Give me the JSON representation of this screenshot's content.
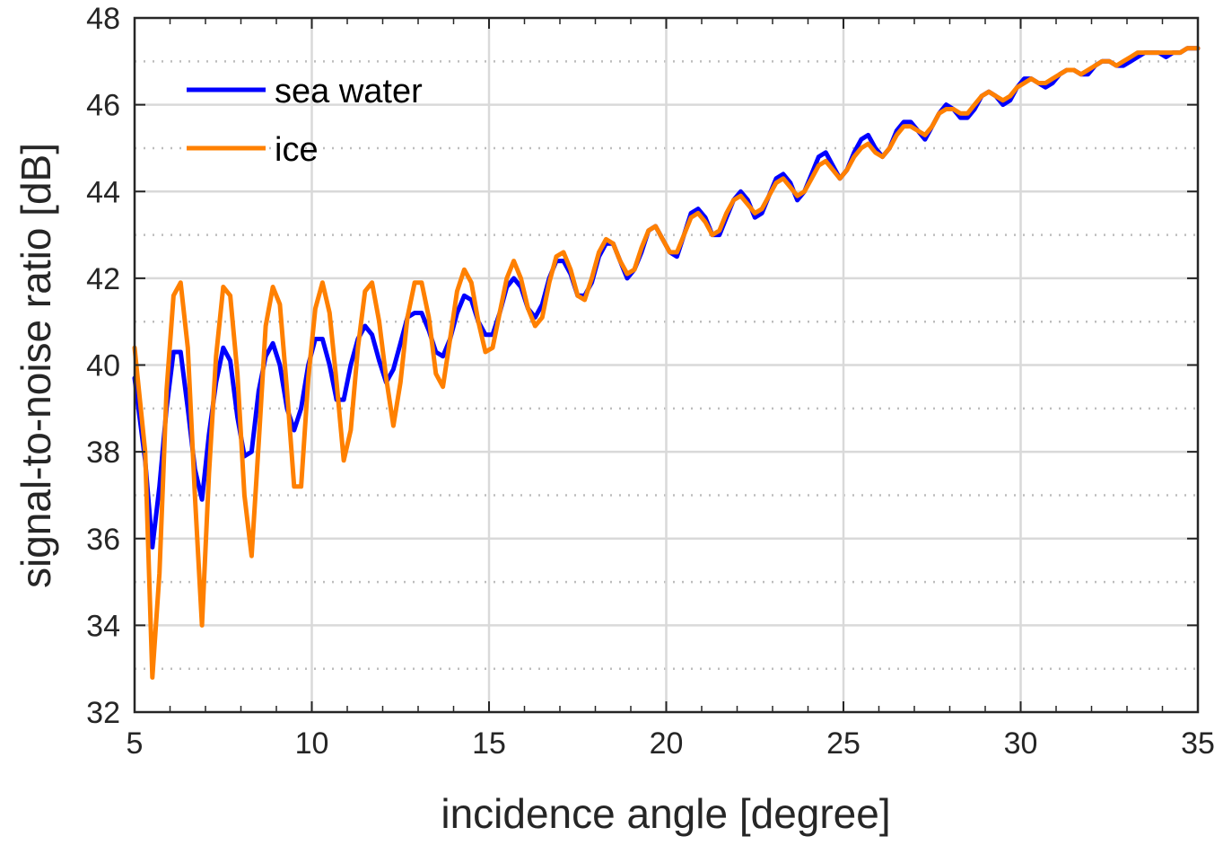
{
  "chart_data": {
    "type": "line",
    "xlabel": "incidence angle [degree]",
    "ylabel": "signal-to-noise ratio [dB]",
    "xlim": [
      5,
      35
    ],
    "ylim": [
      32,
      48
    ],
    "xticks": [
      "5",
      "10",
      "15",
      "20",
      "25",
      "30",
      "35"
    ],
    "yticks": [
      "32",
      "34",
      "36",
      "38",
      "40",
      "42",
      "44",
      "46",
      "48"
    ],
    "grid": "major solid, minor dotted",
    "legend_position": "top-left",
    "series": [
      {
        "name": "sea water",
        "color": "#0000ff",
        "points": [
          [
            5.0,
            39.7
          ],
          [
            5.3,
            37.8
          ],
          [
            5.5,
            35.8
          ],
          [
            5.7,
            37.2
          ],
          [
            5.9,
            39.0
          ],
          [
            6.1,
            40.3
          ],
          [
            6.3,
            40.3
          ],
          [
            6.5,
            39.0
          ],
          [
            6.7,
            37.6
          ],
          [
            6.9,
            36.9
          ],
          [
            7.1,
            38.4
          ],
          [
            7.3,
            39.6
          ],
          [
            7.5,
            40.4
          ],
          [
            7.7,
            40.1
          ],
          [
            7.9,
            38.8
          ],
          [
            8.1,
            37.9
          ],
          [
            8.3,
            38.0
          ],
          [
            8.5,
            39.4
          ],
          [
            8.7,
            40.2
          ],
          [
            8.9,
            40.5
          ],
          [
            9.1,
            40.0
          ],
          [
            9.3,
            39.0
          ],
          [
            9.5,
            38.5
          ],
          [
            9.7,
            39.0
          ],
          [
            9.9,
            40.0
          ],
          [
            10.1,
            40.6
          ],
          [
            10.3,
            40.6
          ],
          [
            10.5,
            40.0
          ],
          [
            10.7,
            39.2
          ],
          [
            10.9,
            39.2
          ],
          [
            11.1,
            40.0
          ],
          [
            11.3,
            40.6
          ],
          [
            11.5,
            40.9
          ],
          [
            11.7,
            40.7
          ],
          [
            11.9,
            40.1
          ],
          [
            12.1,
            39.6
          ],
          [
            12.3,
            39.9
          ],
          [
            12.5,
            40.5
          ],
          [
            12.7,
            41.1
          ],
          [
            12.9,
            41.2
          ],
          [
            13.1,
            41.2
          ],
          [
            13.3,
            40.8
          ],
          [
            13.5,
            40.3
          ],
          [
            13.7,
            40.2
          ],
          [
            13.9,
            40.6
          ],
          [
            14.1,
            41.2
          ],
          [
            14.3,
            41.6
          ],
          [
            14.5,
            41.5
          ],
          [
            14.7,
            41.0
          ],
          [
            14.9,
            40.7
          ],
          [
            15.1,
            40.7
          ],
          [
            15.3,
            41.2
          ],
          [
            15.5,
            41.8
          ],
          [
            15.7,
            42.0
          ],
          [
            15.9,
            41.8
          ],
          [
            16.1,
            41.3
          ],
          [
            16.3,
            41.1
          ],
          [
            16.5,
            41.4
          ],
          [
            16.7,
            42.0
          ],
          [
            16.9,
            42.4
          ],
          [
            17.1,
            42.4
          ],
          [
            17.3,
            42.1
          ],
          [
            17.5,
            41.6
          ],
          [
            17.7,
            41.6
          ],
          [
            17.9,
            41.9
          ],
          [
            18.1,
            42.5
          ],
          [
            18.3,
            42.8
          ],
          [
            18.5,
            42.8
          ],
          [
            18.7,
            42.4
          ],
          [
            18.9,
            42.0
          ],
          [
            19.1,
            42.2
          ],
          [
            19.3,
            42.6
          ],
          [
            19.5,
            43.1
          ],
          [
            19.7,
            43.2
          ],
          [
            19.9,
            42.9
          ],
          [
            20.1,
            42.6
          ],
          [
            20.3,
            42.5
          ],
          [
            20.5,
            43.0
          ],
          [
            20.7,
            43.5
          ],
          [
            20.9,
            43.6
          ],
          [
            21.1,
            43.4
          ],
          [
            21.3,
            43.0
          ],
          [
            21.5,
            43.0
          ],
          [
            21.7,
            43.4
          ],
          [
            21.9,
            43.8
          ],
          [
            22.1,
            44.0
          ],
          [
            22.3,
            43.8
          ],
          [
            22.5,
            43.4
          ],
          [
            22.7,
            43.5
          ],
          [
            22.9,
            43.9
          ],
          [
            23.1,
            44.3
          ],
          [
            23.3,
            44.4
          ],
          [
            23.5,
            44.2
          ],
          [
            23.7,
            43.8
          ],
          [
            23.9,
            44.0
          ],
          [
            24.1,
            44.4
          ],
          [
            24.3,
            44.8
          ],
          [
            24.5,
            44.9
          ],
          [
            24.7,
            44.6
          ],
          [
            24.9,
            44.3
          ],
          [
            25.1,
            44.5
          ],
          [
            25.3,
            44.9
          ],
          [
            25.5,
            45.2
          ],
          [
            25.7,
            45.3
          ],
          [
            25.9,
            45.0
          ],
          [
            26.1,
            44.8
          ],
          [
            26.3,
            45.0
          ],
          [
            26.5,
            45.4
          ],
          [
            26.7,
            45.6
          ],
          [
            26.9,
            45.6
          ],
          [
            27.1,
            45.4
          ],
          [
            27.3,
            45.2
          ],
          [
            27.5,
            45.5
          ],
          [
            27.7,
            45.8
          ],
          [
            27.9,
            46.0
          ],
          [
            28.1,
            45.9
          ],
          [
            28.3,
            45.7
          ],
          [
            28.5,
            45.7
          ],
          [
            28.7,
            45.9
          ],
          [
            28.9,
            46.2
          ],
          [
            29.1,
            46.3
          ],
          [
            29.3,
            46.2
          ],
          [
            29.5,
            46.0
          ],
          [
            29.7,
            46.1
          ],
          [
            29.9,
            46.4
          ],
          [
            30.1,
            46.6
          ],
          [
            30.3,
            46.6
          ],
          [
            30.5,
            46.5
          ],
          [
            30.7,
            46.4
          ],
          [
            30.9,
            46.5
          ],
          [
            31.1,
            46.7
          ],
          [
            31.3,
            46.8
          ],
          [
            31.5,
            46.8
          ],
          [
            31.7,
            46.7
          ],
          [
            31.9,
            46.7
          ],
          [
            32.1,
            46.9
          ],
          [
            32.3,
            47.0
          ],
          [
            32.5,
            47.0
          ],
          [
            32.7,
            46.9
          ],
          [
            32.9,
            46.9
          ],
          [
            33.1,
            47.0
          ],
          [
            33.3,
            47.1
          ],
          [
            33.5,
            47.2
          ],
          [
            33.7,
            47.2
          ],
          [
            33.9,
            47.2
          ],
          [
            34.1,
            47.1
          ],
          [
            34.3,
            47.2
          ],
          [
            34.5,
            47.2
          ],
          [
            34.7,
            47.3
          ],
          [
            35.0,
            47.3
          ]
        ]
      },
      {
        "name": "ice",
        "color": "#ff8000",
        "points": [
          [
            5.0,
            40.4
          ],
          [
            5.3,
            38.0
          ],
          [
            5.5,
            32.8
          ],
          [
            5.7,
            35.2
          ],
          [
            5.9,
            39.4
          ],
          [
            6.1,
            41.6
          ],
          [
            6.3,
            41.9
          ],
          [
            6.5,
            40.4
          ],
          [
            6.7,
            37.0
          ],
          [
            6.9,
            34.0
          ],
          [
            7.1,
            37.5
          ],
          [
            7.3,
            40.2
          ],
          [
            7.5,
            41.8
          ],
          [
            7.7,
            41.6
          ],
          [
            7.9,
            39.8
          ],
          [
            8.1,
            37.0
          ],
          [
            8.3,
            35.6
          ],
          [
            8.5,
            38.2
          ],
          [
            8.7,
            40.9
          ],
          [
            8.9,
            41.8
          ],
          [
            9.1,
            41.4
          ],
          [
            9.3,
            39.4
          ],
          [
            9.5,
            37.2
          ],
          [
            9.7,
            37.2
          ],
          [
            9.9,
            39.7
          ],
          [
            10.1,
            41.3
          ],
          [
            10.3,
            41.9
          ],
          [
            10.5,
            41.2
          ],
          [
            10.7,
            39.6
          ],
          [
            10.9,
            37.8
          ],
          [
            11.1,
            38.5
          ],
          [
            11.3,
            40.4
          ],
          [
            11.5,
            41.7
          ],
          [
            11.7,
            41.9
          ],
          [
            11.9,
            41.0
          ],
          [
            12.1,
            39.7
          ],
          [
            12.3,
            38.6
          ],
          [
            12.5,
            39.6
          ],
          [
            12.7,
            41.1
          ],
          [
            12.9,
            41.9
          ],
          [
            13.1,
            41.9
          ],
          [
            13.3,
            41.1
          ],
          [
            13.5,
            39.8
          ],
          [
            13.7,
            39.5
          ],
          [
            13.9,
            40.6
          ],
          [
            14.1,
            41.7
          ],
          [
            14.3,
            42.2
          ],
          [
            14.5,
            41.9
          ],
          [
            14.7,
            41.0
          ],
          [
            14.9,
            40.3
          ],
          [
            15.1,
            40.4
          ],
          [
            15.3,
            41.2
          ],
          [
            15.5,
            42.0
          ],
          [
            15.7,
            42.4
          ],
          [
            15.9,
            42.0
          ],
          [
            16.1,
            41.3
          ],
          [
            16.3,
            40.9
          ],
          [
            16.5,
            41.1
          ],
          [
            16.7,
            41.9
          ],
          [
            16.9,
            42.5
          ],
          [
            17.1,
            42.6
          ],
          [
            17.3,
            42.2
          ],
          [
            17.5,
            41.6
          ],
          [
            17.7,
            41.5
          ],
          [
            17.9,
            42.0
          ],
          [
            18.1,
            42.6
          ],
          [
            18.3,
            42.9
          ],
          [
            18.5,
            42.8
          ],
          [
            18.7,
            42.4
          ],
          [
            18.9,
            42.1
          ],
          [
            19.1,
            42.2
          ],
          [
            19.3,
            42.7
          ],
          [
            19.5,
            43.1
          ],
          [
            19.7,
            43.2
          ],
          [
            19.9,
            42.9
          ],
          [
            20.1,
            42.6
          ],
          [
            20.3,
            42.6
          ],
          [
            20.5,
            43.0
          ],
          [
            20.7,
            43.4
          ],
          [
            20.9,
            43.5
          ],
          [
            21.1,
            43.3
          ],
          [
            21.3,
            43.0
          ],
          [
            21.5,
            43.1
          ],
          [
            21.7,
            43.5
          ],
          [
            21.9,
            43.8
          ],
          [
            22.1,
            43.9
          ],
          [
            22.3,
            43.7
          ],
          [
            22.5,
            43.5
          ],
          [
            22.7,
            43.6
          ],
          [
            22.9,
            43.9
          ],
          [
            23.1,
            44.2
          ],
          [
            23.3,
            44.3
          ],
          [
            23.5,
            44.1
          ],
          [
            23.7,
            43.9
          ],
          [
            23.9,
            44.0
          ],
          [
            24.1,
            44.3
          ],
          [
            24.3,
            44.6
          ],
          [
            24.5,
            44.7
          ],
          [
            24.7,
            44.5
          ],
          [
            24.9,
            44.3
          ],
          [
            25.1,
            44.5
          ],
          [
            25.3,
            44.8
          ],
          [
            25.5,
            45.0
          ],
          [
            25.7,
            45.1
          ],
          [
            25.9,
            44.9
          ],
          [
            26.1,
            44.8
          ],
          [
            26.3,
            45.0
          ],
          [
            26.5,
            45.3
          ],
          [
            26.7,
            45.5
          ],
          [
            26.9,
            45.5
          ],
          [
            27.1,
            45.4
          ],
          [
            27.3,
            45.3
          ],
          [
            27.5,
            45.5
          ],
          [
            27.7,
            45.8
          ],
          [
            27.9,
            45.9
          ],
          [
            28.1,
            45.9
          ],
          [
            28.3,
            45.8
          ],
          [
            28.5,
            45.8
          ],
          [
            28.7,
            46.0
          ],
          [
            28.9,
            46.2
          ],
          [
            29.1,
            46.3
          ],
          [
            29.3,
            46.2
          ],
          [
            29.5,
            46.1
          ],
          [
            29.7,
            46.2
          ],
          [
            29.9,
            46.4
          ],
          [
            30.1,
            46.5
          ],
          [
            30.3,
            46.6
          ],
          [
            30.5,
            46.5
          ],
          [
            30.7,
            46.5
          ],
          [
            30.9,
            46.6
          ],
          [
            31.1,
            46.7
          ],
          [
            31.3,
            46.8
          ],
          [
            31.5,
            46.8
          ],
          [
            31.7,
            46.7
          ],
          [
            31.9,
            46.8
          ],
          [
            32.1,
            46.9
          ],
          [
            32.3,
            47.0
          ],
          [
            32.5,
            47.0
          ],
          [
            32.7,
            46.9
          ],
          [
            32.9,
            47.0
          ],
          [
            33.1,
            47.1
          ],
          [
            33.3,
            47.2
          ],
          [
            33.5,
            47.2
          ],
          [
            33.7,
            47.2
          ],
          [
            33.9,
            47.2
          ],
          [
            34.1,
            47.2
          ],
          [
            34.3,
            47.2
          ],
          [
            34.5,
            47.2
          ],
          [
            34.7,
            47.3
          ],
          [
            35.0,
            47.3
          ]
        ]
      }
    ]
  }
}
